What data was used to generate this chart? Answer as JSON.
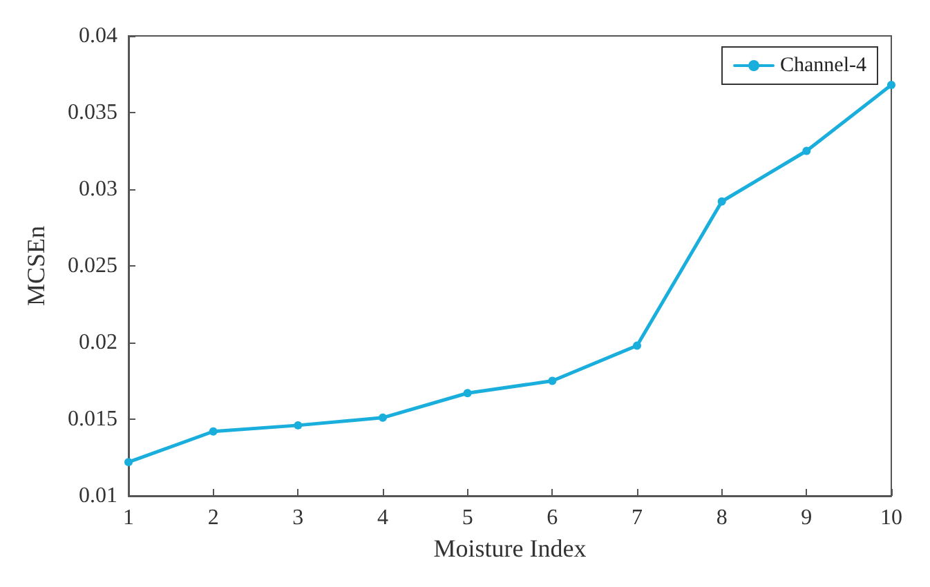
{
  "chart_data": {
    "type": "line",
    "xlabel": "Moisture Index",
    "ylabel": "MCSEn",
    "x": [
      1,
      2,
      3,
      4,
      5,
      6,
      7,
      8,
      9,
      10
    ],
    "series": [
      {
        "name": "Channel-4",
        "color": "#1aaedc",
        "values": [
          0.0122,
          0.0142,
          0.0146,
          0.0151,
          0.0167,
          0.0175,
          0.0198,
          0.0292,
          0.0325,
          0.0368
        ]
      }
    ],
    "xlim": [
      1,
      10
    ],
    "xticks": [
      1,
      2,
      3,
      4,
      5,
      6,
      7,
      8,
      9,
      10
    ],
    "ylim": [
      0.01,
      0.04
    ],
    "yticks": [
      0.01,
      0.015,
      0.02,
      0.025,
      0.03,
      0.035,
      0.04
    ],
    "grid": false,
    "legend": "top right",
    "marker": "circle",
    "line_style": "solid"
  }
}
